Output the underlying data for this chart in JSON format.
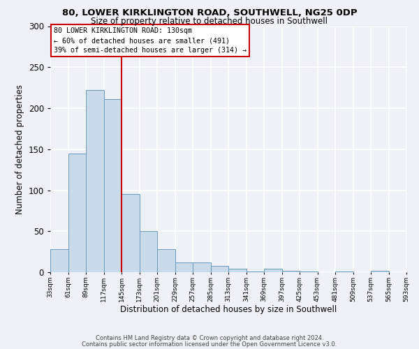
{
  "title1": "80, LOWER KIRKLINGTON ROAD, SOUTHWELL, NG25 0DP",
  "title2": "Size of property relative to detached houses in Southwell",
  "xlabel": "Distribution of detached houses by size in Southwell",
  "ylabel": "Number of detached properties",
  "bar_values": [
    28,
    145,
    222,
    211,
    95,
    50,
    28,
    12,
    12,
    8,
    4,
    1,
    4,
    2,
    1,
    0,
    1,
    0,
    2,
    0
  ],
  "bin_labels": [
    "33sqm",
    "61sqm",
    "89sqm",
    "117sqm",
    "145sqm",
    "173sqm",
    "201sqm",
    "229sqm",
    "257sqm",
    "285sqm",
    "313sqm",
    "341sqm",
    "369sqm",
    "397sqm",
    "425sqm",
    "453sqm",
    "481sqm",
    "509sqm",
    "537sqm",
    "565sqm",
    "593sqm"
  ],
  "bar_color": "#c9daea",
  "bar_edge_color": "#6699bb",
  "vline_x": 4.0,
  "vline_color": "#cc0000",
  "ylim": [
    0,
    300
  ],
  "yticks": [
    0,
    50,
    100,
    150,
    200,
    250,
    300
  ],
  "annotation_line1": "80 LOWER KIRKLINGTON ROAD: 130sqm",
  "annotation_line2": "← 60% of detached houses are smaller (491)",
  "annotation_line3": "39% of semi-detached houses are larger (314) →",
  "annotation_box_facecolor": "#ffffff",
  "annotation_box_edgecolor": "#cc0000",
  "footer1": "Contains HM Land Registry data © Crown copyright and database right 2024.",
  "footer2": "Contains public sector information licensed under the Open Government Licence v3.0.",
  "background_color": "#eef2f8",
  "grid_color": "#ffffff"
}
